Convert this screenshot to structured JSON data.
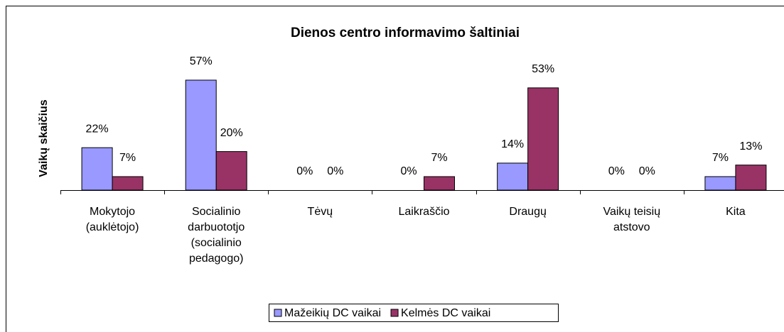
{
  "chart_data": {
    "type": "bar",
    "title": "Dienos centro informavimo šaltiniai",
    "y_label": "Vaikų skaičius",
    "categories": [
      "Mokytojo (auklėtojo)",
      "Socialinio darbuototjo (socialinio pedagogo)",
      "Tėvų",
      "Laikraščio",
      "Draugų",
      "Vaikų teisių atstovo",
      "Kita"
    ],
    "series": [
      {
        "name": "Mažeikių DC vaikai",
        "color": "#9999ff",
        "values": [
          22,
          57,
          0,
          0,
          14,
          0,
          7
        ],
        "value_labels": [
          "22%",
          "57%",
          "0%",
          "0%",
          "14%",
          "0%",
          "7%"
        ]
      },
      {
        "name": "Kelmės DC vaikai",
        "color": "#993366",
        "values": [
          7,
          20,
          0,
          7,
          53,
          0,
          13
        ],
        "value_labels": [
          "7%",
          "20%",
          "0%",
          "7%",
          "53%",
          "0%",
          "13%"
        ]
      }
    ],
    "ylim": [
      0,
      65
    ],
    "legend": "bottom"
  }
}
